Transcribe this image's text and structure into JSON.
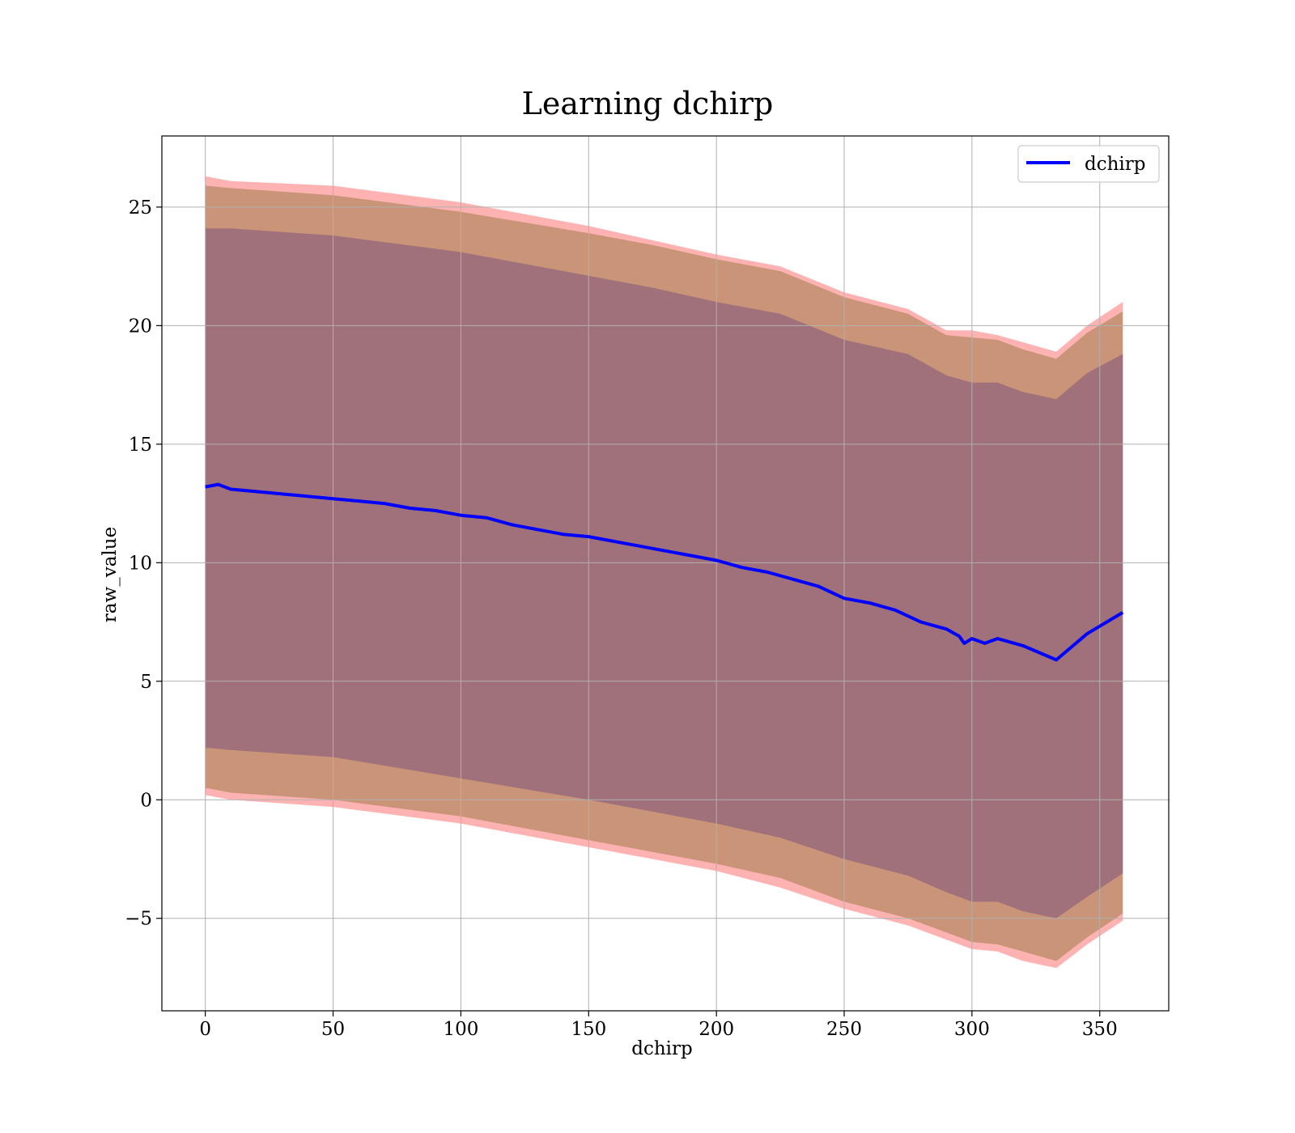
{
  "chart_data": {
    "type": "line",
    "title": "Learning dchirp",
    "xlabel": "dchirp",
    "ylabel": "raw_value",
    "xlim": [
      -17,
      377
    ],
    "ylim": [
      -8.9,
      28.0
    ],
    "xticks": [
      0,
      50,
      100,
      150,
      200,
      250,
      300,
      350
    ],
    "yticks": [
      -5,
      0,
      5,
      10,
      15,
      20,
      25
    ],
    "ytick_labels": [
      "−5",
      "0",
      "5",
      "10",
      "15",
      "20",
      "25"
    ],
    "grid": true,
    "legend_position": "upper right",
    "colors": {
      "line": "#0000ff",
      "inner_band": "#a0717b",
      "middle_band": "#c99478",
      "outer_band": "#ffb2b2",
      "grid": "#b0b0b0"
    },
    "series": [
      {
        "name": "dchirp",
        "x": [
          0,
          5,
          10,
          20,
          30,
          40,
          50,
          60,
          70,
          80,
          90,
          100,
          110,
          120,
          130,
          140,
          150,
          160,
          170,
          180,
          190,
          200,
          210,
          220,
          230,
          240,
          250,
          260,
          270,
          280,
          290,
          295,
          297,
          300,
          305,
          310,
          320,
          333,
          345,
          359
        ],
        "values": [
          13.2,
          13.3,
          13.1,
          13.0,
          12.9,
          12.8,
          12.7,
          12.6,
          12.5,
          12.3,
          12.2,
          12.0,
          11.9,
          11.6,
          11.4,
          11.2,
          11.1,
          10.9,
          10.7,
          10.5,
          10.3,
          10.1,
          9.8,
          9.6,
          9.3,
          9.0,
          8.5,
          8.3,
          8.0,
          7.5,
          7.2,
          6.9,
          6.6,
          6.8,
          6.6,
          6.8,
          6.5,
          5.9,
          7.0,
          7.9
        ]
      }
    ],
    "bands": [
      {
        "kind": "outer",
        "x": [
          0,
          10,
          50,
          100,
          150,
          175,
          200,
          225,
          250,
          275,
          290,
          300,
          310,
          320,
          333,
          345,
          359
        ],
        "upper": [
          26.3,
          26.1,
          25.9,
          25.2,
          24.2,
          23.6,
          23.0,
          22.5,
          21.4,
          20.7,
          19.8,
          19.8,
          19.6,
          19.3,
          18.9,
          20.0,
          21.0
        ],
        "lower": [
          0.2,
          0.0,
          -0.3,
          -1.0,
          -2.0,
          -2.5,
          -3.0,
          -3.7,
          -4.6,
          -5.3,
          -5.9,
          -6.3,
          -6.4,
          -6.8,
          -7.1,
          -6.1,
          -5.1
        ]
      },
      {
        "kind": "middle",
        "x": [
          0,
          10,
          50,
          100,
          150,
          175,
          200,
          225,
          250,
          275,
          290,
          300,
          310,
          320,
          333,
          345,
          359
        ],
        "upper": [
          25.9,
          25.8,
          25.5,
          24.8,
          23.9,
          23.4,
          22.8,
          22.3,
          21.2,
          20.5,
          19.6,
          19.5,
          19.4,
          19.0,
          18.6,
          19.7,
          20.6
        ],
        "lower": [
          0.5,
          0.3,
          0.0,
          -0.7,
          -1.7,
          -2.2,
          -2.7,
          -3.3,
          -4.3,
          -5.0,
          -5.6,
          -6.0,
          -6.1,
          -6.4,
          -6.8,
          -5.8,
          -4.8
        ]
      },
      {
        "kind": "inner",
        "x": [
          0,
          10,
          50,
          100,
          150,
          175,
          200,
          225,
          250,
          275,
          290,
          300,
          310,
          320,
          333,
          345,
          359
        ],
        "upper": [
          24.1,
          24.1,
          23.8,
          23.1,
          22.1,
          21.6,
          21.0,
          20.5,
          19.4,
          18.8,
          17.9,
          17.6,
          17.6,
          17.2,
          16.9,
          18.0,
          18.8
        ],
        "lower": [
          2.2,
          2.1,
          1.8,
          0.9,
          0.0,
          -0.5,
          -1.0,
          -1.6,
          -2.5,
          -3.2,
          -3.9,
          -4.3,
          -4.3,
          -4.7,
          -5.0,
          -4.1,
          -3.1
        ]
      }
    ]
  }
}
